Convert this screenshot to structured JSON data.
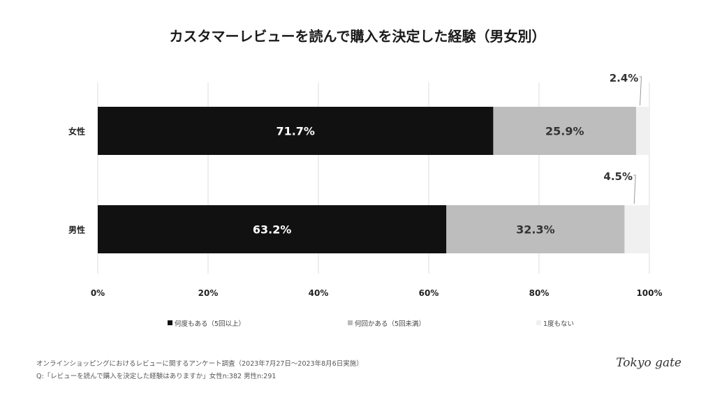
{
  "chart_data": {
    "type": "bar",
    "orientation": "horizontal",
    "stacked": true,
    "title": "カスタマーレビューを読んで購入を決定した経験（男女別）",
    "categories": [
      "女性",
      "男性"
    ],
    "series": [
      {
        "name": "何度もある（5回以上）",
        "values": [
          71.7,
          63.2
        ],
        "color": "#111111",
        "labels": [
          "71.7%",
          "63.2%"
        ]
      },
      {
        "name": "何回かある（5回未満）",
        "values": [
          25.9,
          32.3
        ],
        "color": "#bdbdbd",
        "labels": [
          "25.9%",
          "32.3%"
        ]
      },
      {
        "name": "1度もない",
        "values": [
          2.4,
          4.5
        ],
        "color": "#f0f0f0",
        "labels": [
          "2.4%",
          "4.5%"
        ]
      }
    ],
    "xlim": [
      0,
      100
    ],
    "xticks": [
      "0%",
      "20%",
      "40%",
      "60%",
      "80%",
      "100%"
    ],
    "grid": true,
    "legend": "bottom"
  },
  "footer": {
    "source": "オンラインショッピングにおけるレビューに関するアンケート調査（2023年7月27日〜2023年8月6日実施）",
    "question": "Q:「レビューを読んで購入を決定した経験はありますか」女性n:382 男性n:291"
  },
  "logo": "Tokyo gate"
}
